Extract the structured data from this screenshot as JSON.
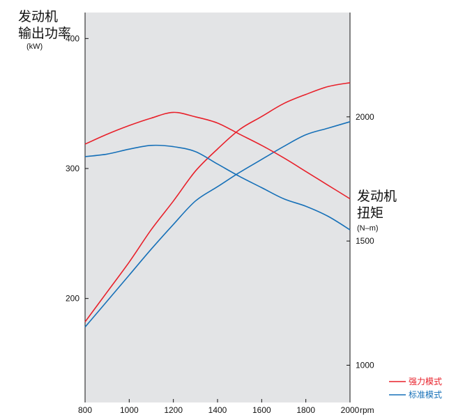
{
  "chart_data": {
    "type": "line",
    "x_label_unit": "rpm",
    "x_ticks": [
      800,
      1000,
      1200,
      1400,
      1600,
      1800,
      2000
    ],
    "xlim": [
      800,
      2000
    ],
    "power_axis": {
      "title_line1": "发动机",
      "title_line2": "输出功率",
      "unit": "(kW)",
      "ticks": [
        200,
        300,
        400
      ],
      "ylim": [
        120,
        420
      ]
    },
    "torque_axis": {
      "title_line1": "发动机",
      "title_line2": "扭矩",
      "unit": "(N–m)",
      "ticks": [
        1000,
        1500,
        2000
      ],
      "ylim": [
        850,
        2420
      ]
    },
    "colors": {
      "power_mode": "#e8202a",
      "standard_mode": "#1670b8",
      "plot_bg": "#e3e4e6"
    },
    "series": [
      {
        "name": "强力模式",
        "axis": "power",
        "color": "#e8202a",
        "x": [
          800,
          900,
          1000,
          1100,
          1200,
          1300,
          1400,
          1500,
          1600,
          1700,
          1800,
          1900,
          2000
        ],
        "y": [
          182,
          205,
          228,
          253,
          275,
          298,
          315,
          330,
          340,
          350,
          357,
          363,
          366
        ]
      },
      {
        "name": "标准模式",
        "axis": "power",
        "color": "#1670b8",
        "x": [
          800,
          900,
          1000,
          1100,
          1200,
          1300,
          1400,
          1500,
          1600,
          1700,
          1800,
          1900,
          2000
        ],
        "y": [
          178,
          198,
          218,
          238,
          257,
          275,
          286,
          297,
          307,
          317,
          326,
          331,
          336
        ]
      },
      {
        "name": "强力模式",
        "axis": "torque",
        "color": "#e8202a",
        "x": [
          800,
          900,
          1000,
          1100,
          1200,
          1300,
          1400,
          1500,
          1600,
          1700,
          1800,
          1900,
          2000
        ],
        "y": [
          1890,
          1930,
          1965,
          1995,
          2018,
          2000,
          1975,
          1930,
          1885,
          1835,
          1780,
          1725,
          1670
        ]
      },
      {
        "name": "标准模式",
        "axis": "torque",
        "color": "#1670b8",
        "x": [
          800,
          900,
          1000,
          1100,
          1200,
          1300,
          1400,
          1500,
          1600,
          1700,
          1800,
          1900,
          2000
        ],
        "y": [
          1840,
          1850,
          1870,
          1885,
          1880,
          1860,
          1810,
          1760,
          1715,
          1670,
          1640,
          1600,
          1545
        ]
      }
    ],
    "legend": [
      {
        "label": "强力模式",
        "color": "#e8202a"
      },
      {
        "label": "标准模式",
        "color": "#1670b8"
      }
    ],
    "legend_position": "bottom-right",
    "grid": false
  }
}
